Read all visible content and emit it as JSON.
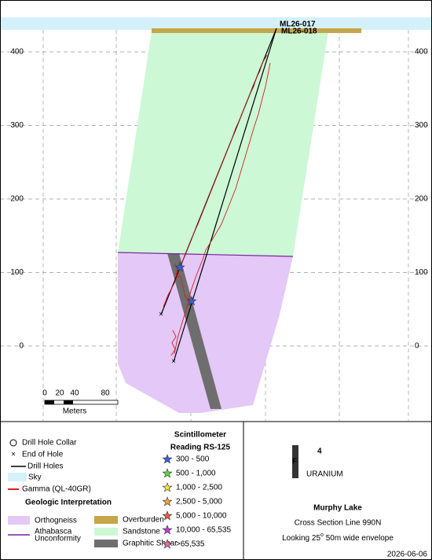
{
  "section": {
    "elevation_ticks": [
      400,
      300,
      200,
      100,
      0
    ],
    "drill_holes": [
      "ML26-017",
      "ML26-018"
    ],
    "scale_bar": {
      "labels": [
        "0",
        "20",
        "40",
        "80"
      ],
      "unit": "Meters"
    }
  },
  "legend": {
    "collar": "Drill Hole Collar",
    "end": "End of Hole",
    "holes": "Drill Holes",
    "sky": "Sky",
    "gamma": "Gamma (QL-40GR)",
    "geology_title": "Geologic Interpretation",
    "orthogneiss": "Orthogneiss",
    "unconformity": [
      "Athabasca",
      "Unconformity"
    ],
    "overburden": "Overburden",
    "sandstone": "Sandstone",
    "shear": "Graphitic Shear"
  },
  "scintillometer": {
    "title": [
      "Scintillometer",
      "Reading RS-125"
    ],
    "ranges": [
      "300 - 500",
      "500 - 1,000",
      "1,000 - 2,500",
      "2,500 - 5,000",
      "5,000 - 10,000",
      "10,000 - 65,535",
      ">65,535"
    ]
  },
  "logo": {
    "mark": "F",
    "number": "4",
    "word": "URANIUM"
  },
  "title_block": {
    "project": "Murphy Lake",
    "section": "Cross Section Line 990N",
    "view": "Looking 25",
    "degree": "o",
    "view_rest": " 50m wide envelope",
    "date": "2026-06-06"
  }
}
